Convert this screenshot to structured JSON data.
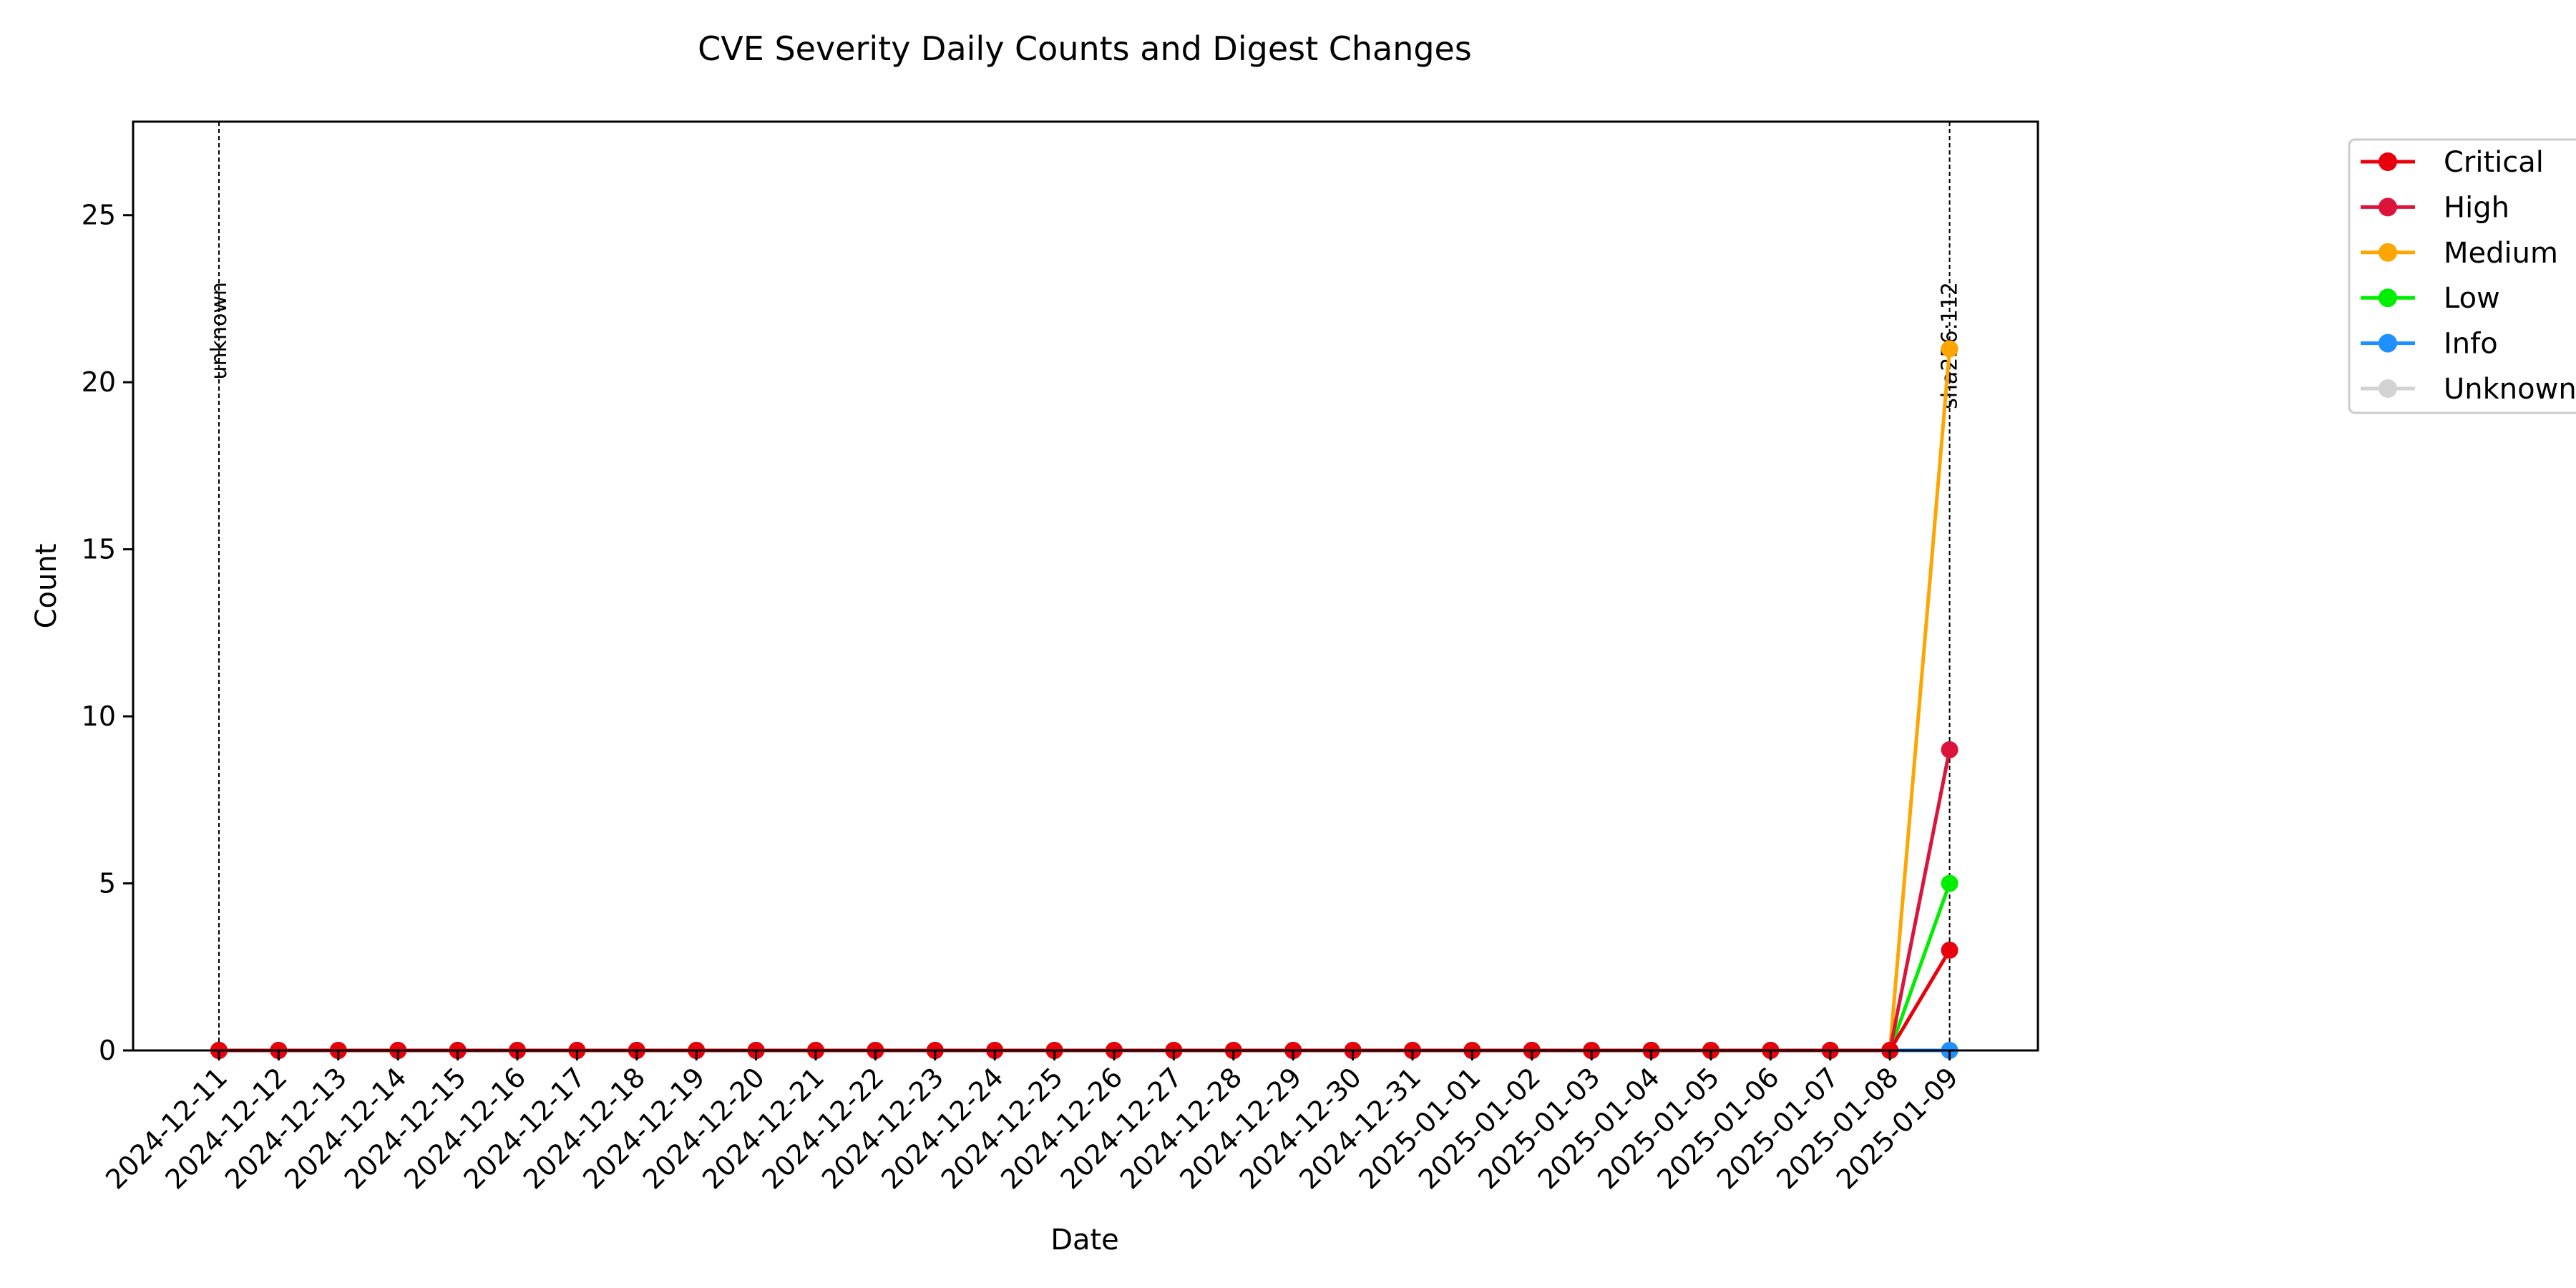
{
  "chart_data": {
    "type": "line",
    "title": "CVE Severity Daily Counts and Digest Changes",
    "xlabel": "Date",
    "ylabel": "Count",
    "ylim": [
      0,
      27.8
    ],
    "yticks": [
      0,
      5,
      10,
      15,
      20,
      25
    ],
    "grid": false,
    "legend_position": "outside-right",
    "categories": [
      "2024-12-11",
      "2024-12-12",
      "2024-12-13",
      "2024-12-14",
      "2024-12-15",
      "2024-12-16",
      "2024-12-17",
      "2024-12-18",
      "2024-12-19",
      "2024-12-20",
      "2024-12-21",
      "2024-12-22",
      "2024-12-23",
      "2024-12-24",
      "2024-12-25",
      "2024-12-26",
      "2024-12-27",
      "2024-12-28",
      "2024-12-29",
      "2024-12-30",
      "2024-12-31",
      "2025-01-01",
      "2025-01-02",
      "2025-01-03",
      "2025-01-04",
      "2025-01-05",
      "2025-01-06",
      "2025-01-07",
      "2025-01-08",
      "2025-01-09"
    ],
    "series": [
      {
        "name": "Critical",
        "color": "#e8000b",
        "values": [
          0,
          0,
          0,
          0,
          0,
          0,
          0,
          0,
          0,
          0,
          0,
          0,
          0,
          0,
          0,
          0,
          0,
          0,
          0,
          0,
          0,
          0,
          0,
          0,
          0,
          0,
          0,
          0,
          0,
          3
        ]
      },
      {
        "name": "High",
        "color": "#dc143c",
        "values": [
          0,
          0,
          0,
          0,
          0,
          0,
          0,
          0,
          0,
          0,
          0,
          0,
          0,
          0,
          0,
          0,
          0,
          0,
          0,
          0,
          0,
          0,
          0,
          0,
          0,
          0,
          0,
          0,
          0,
          9
        ]
      },
      {
        "name": "Medium",
        "color": "#ffa500",
        "values": [
          0,
          0,
          0,
          0,
          0,
          0,
          0,
          0,
          0,
          0,
          0,
          0,
          0,
          0,
          0,
          0,
          0,
          0,
          0,
          0,
          0,
          0,
          0,
          0,
          0,
          0,
          0,
          0,
          0,
          21
        ]
      },
      {
        "name": "Low",
        "color": "#00ee00",
        "values": [
          0,
          0,
          0,
          0,
          0,
          0,
          0,
          0,
          0,
          0,
          0,
          0,
          0,
          0,
          0,
          0,
          0,
          0,
          0,
          0,
          0,
          0,
          0,
          0,
          0,
          0,
          0,
          0,
          0,
          5
        ]
      },
      {
        "name": "Info",
        "color": "#1e90ff",
        "values": [
          0,
          0,
          0,
          0,
          0,
          0,
          0,
          0,
          0,
          0,
          0,
          0,
          0,
          0,
          0,
          0,
          0,
          0,
          0,
          0,
          0,
          0,
          0,
          0,
          0,
          0,
          0,
          0,
          0,
          0
        ]
      },
      {
        "name": "Unknown",
        "color": "#d3d3d3",
        "values": [
          0,
          0,
          0,
          0,
          0,
          0,
          0,
          0,
          0,
          0,
          0,
          0,
          0,
          0,
          0,
          0,
          0,
          0,
          0,
          0,
          0,
          0,
          0,
          0,
          0,
          0,
          0,
          0,
          0,
          0
        ]
      }
    ],
    "annotations": [
      {
        "date": "2024-12-11",
        "label": "unknown"
      },
      {
        "date": "2025-01-09",
        "label": "sha256:112"
      }
    ]
  }
}
